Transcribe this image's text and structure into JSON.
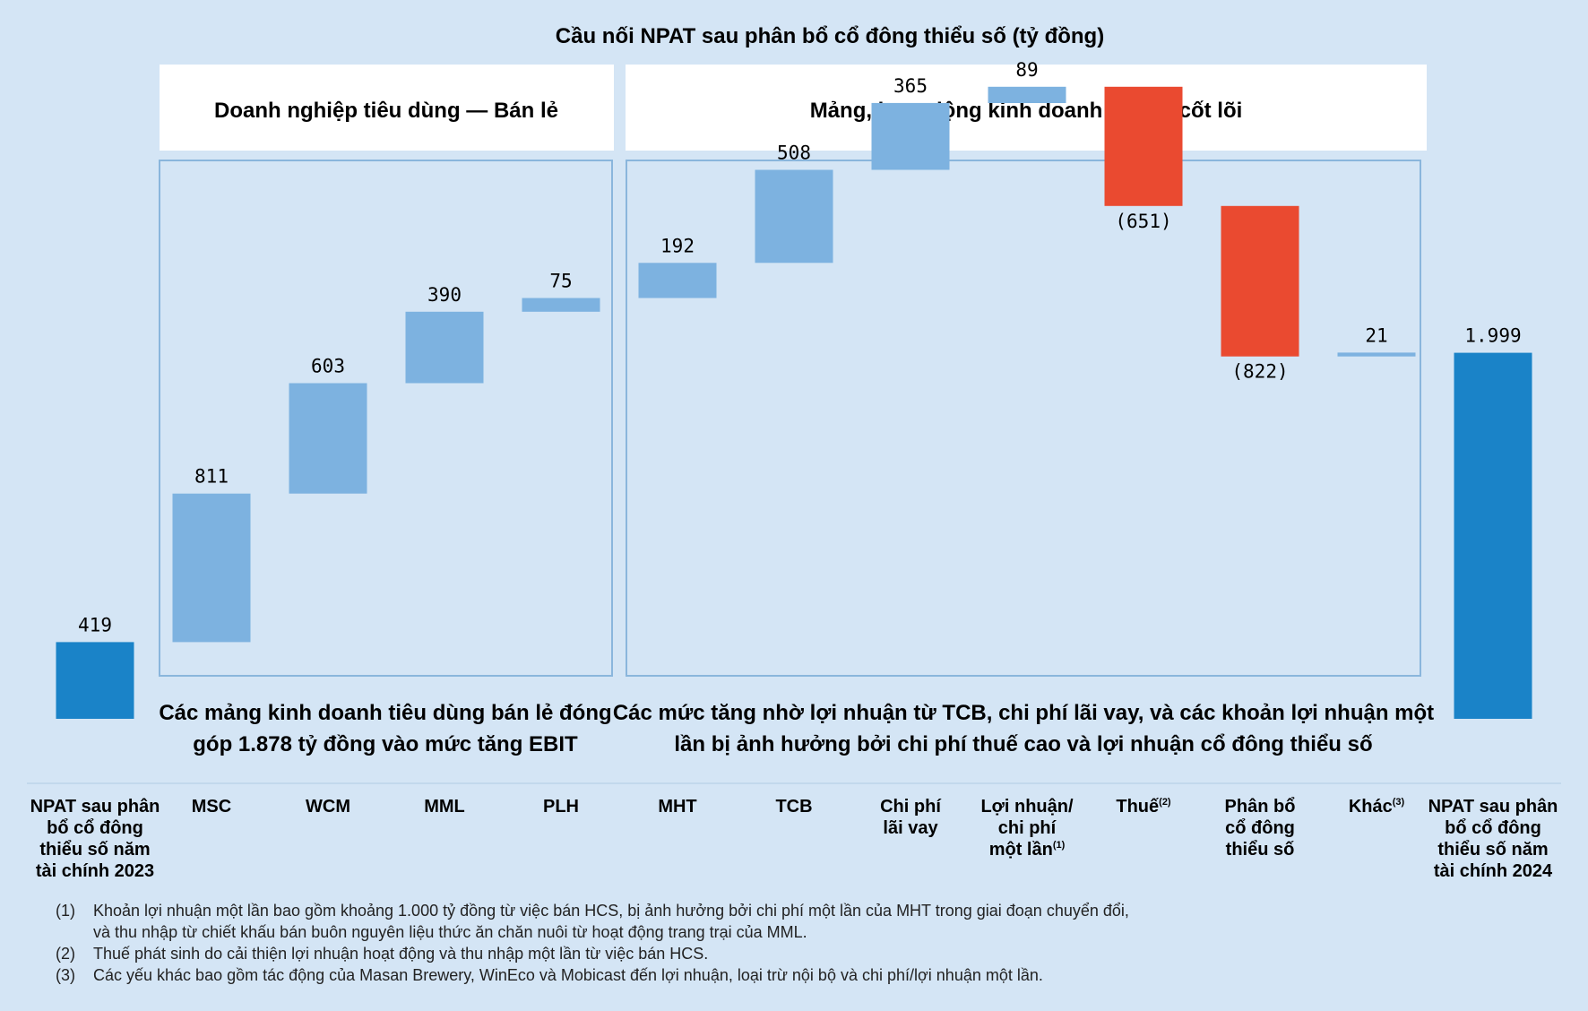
{
  "chart_data": {
    "type": "waterfall",
    "title": "Cầu nối NPAT sau phân bổ cổ đông thiểu số (tỷ đồng)",
    "groups": [
      {
        "header": "Doanh nghiệp tiêu dùng — Bán lẻ",
        "caption": [
          "Các mảng kinh doanh tiêu dùng bán lẻ đóng",
          "góp 1.878 tỷ đồng vào mức tăng EBIT"
        ]
      },
      {
        "header": "Mảng, hoạt động kinh doanh không cốt lõi",
        "caption": [
          "Các mức tăng nhờ lợi nhuận từ TCB, chi phí lãi vay, và các khoản lợi nhuận một",
          "lần bị ảnh hưởng bởi chi phí thuế cao và lợi nhuận cổ đông thiểu số"
        ]
      }
    ],
    "steps": [
      {
        "label": [
          "NPAT sau phân",
          "bổ cổ đông",
          "thiểu số năm",
          "tài chính 2023"
        ],
        "value": 419,
        "display": "419",
        "kind": "total"
      },
      {
        "label": [
          "MSC"
        ],
        "value": 811,
        "display": "811",
        "kind": "increase"
      },
      {
        "label": [
          "WCM"
        ],
        "value": 603,
        "display": "603",
        "kind": "increase"
      },
      {
        "label": [
          "MML"
        ],
        "value": 390,
        "display": "390",
        "kind": "increase"
      },
      {
        "label": [
          "PLH"
        ],
        "value": 75,
        "display": "75",
        "kind": "increase"
      },
      {
        "label": [
          "MHT"
        ],
        "value": 192,
        "display": "192",
        "kind": "increase"
      },
      {
        "label": [
          "TCB"
        ],
        "value": 508,
        "display": "508",
        "kind": "increase"
      },
      {
        "label": [
          "Chi phí",
          "lãi vay"
        ],
        "value": 365,
        "display": "365",
        "kind": "increase"
      },
      {
        "label": [
          "Lợi nhuận/",
          "chi phí",
          "một lần"
        ],
        "sup": "(1)",
        "value": 89,
        "display": "89",
        "kind": "increase"
      },
      {
        "label": [
          "Thuế"
        ],
        "sup": "(2)",
        "value": -651,
        "display": "(651)",
        "kind": "decrease"
      },
      {
        "label": [
          "Phân bổ",
          "cổ đông",
          "thiểu số"
        ],
        "value": -822,
        "display": "(822)",
        "kind": "decrease"
      },
      {
        "label": [
          "Khác"
        ],
        "sup": "(3)",
        "value": 21,
        "display": "21",
        "kind": "increase"
      },
      {
        "label": [
          "NPAT sau phân",
          "bổ cổ đông",
          "thiểu số năm",
          "tài chính 2024"
        ],
        "value": 1999,
        "display": "1.999",
        "kind": "total"
      }
    ],
    "colors": {
      "total": "#1a83c8",
      "increase": "#7db2e0",
      "decrease": "#ea4a30",
      "background": "#d4e5f5",
      "panel": "#ffffff",
      "frame": "#8ab6dc"
    }
  },
  "footnotes": [
    {
      "num": "(1)",
      "lines": [
        "Khoản lợi nhuận một lần bao gồm khoảng 1.000 tỷ đồng từ việc bán HCS, bị ảnh hưởng bởi chi phí một lần của MHT trong giai đoạn chuyển đổi,",
        "và thu nhập từ chiết khấu bán buôn nguyên liệu thức ăn chăn nuôi từ hoạt động trang trại của MML."
      ]
    },
    {
      "num": "(2)",
      "lines": [
        "Thuế phát sinh do cải thiện lợi nhuận hoạt động và thu nhập một lần từ việc bán HCS."
      ]
    },
    {
      "num": "(3)",
      "lines": [
        "Các yếu khác bao gồm tác động của Masan Brewery, WinEco và Mobicast đến lợi nhuận, loại trừ nội bộ và chi phí/lợi nhuận một lần."
      ]
    }
  ]
}
